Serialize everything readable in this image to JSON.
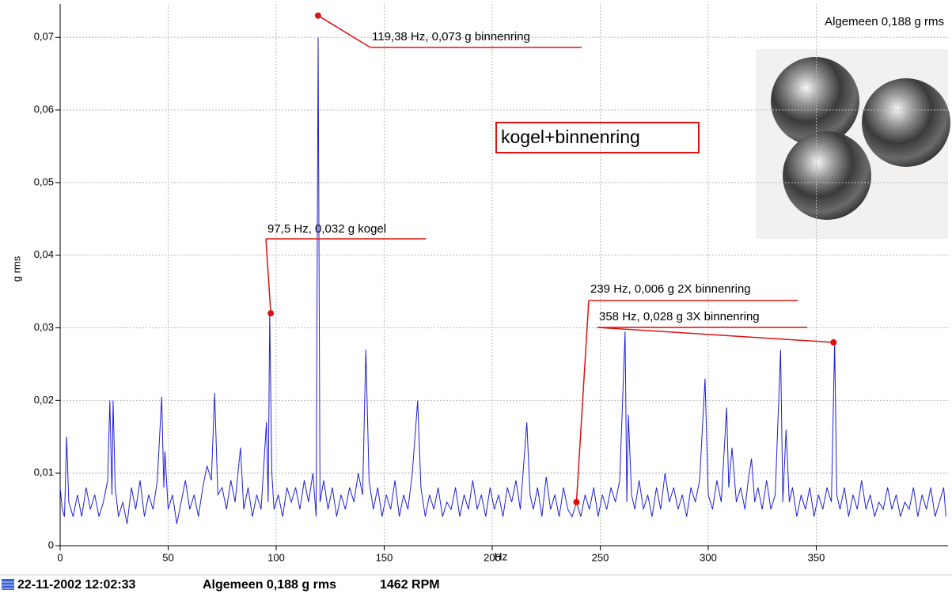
{
  "chart_data": {
    "type": "line",
    "title": "Algemeen 0,188 g rms",
    "x_label": "Hz",
    "y_label": "g rms",
    "box_label": "kogel+binnenring",
    "footer": {
      "timestamp": "22-11-2002 12:02:33",
      "overall": "Algemeen 0,188 g rms",
      "speed": "1462 RPM"
    },
    "xlim": [
      0,
      411
    ],
    "ylim": [
      0,
      0.0746
    ],
    "xticks": [
      0,
      50,
      100,
      150,
      200,
      250,
      300,
      350
    ],
    "yticks": [
      0,
      {
        "value": 0.01,
        "label": "0,01"
      },
      {
        "value": 0.02,
        "label": "0,02"
      },
      {
        "value": 0.03,
        "label": "0,03"
      },
      {
        "value": 0.04,
        "label": "0,04"
      },
      {
        "value": 0.05,
        "label": "0,05"
      },
      {
        "value": 0.06,
        "label": "0,06"
      },
      {
        "value": 0.07,
        "label": "0,07"
      }
    ],
    "grid": true,
    "x": [
      0,
      1,
      2,
      3,
      4,
      6,
      8,
      10,
      12,
      14,
      16,
      18,
      20,
      22,
      23,
      24,
      24.5,
      25.5,
      27,
      29,
      31,
      33,
      35,
      37,
      39,
      41,
      43,
      45,
      47,
      48,
      48.5,
      50,
      52,
      54,
      56,
      58,
      60,
      62,
      64,
      66,
      68,
      70,
      71.5,
      73,
      75,
      77,
      79,
      81,
      83.5,
      85,
      87,
      89,
      91,
      93,
      95.5,
      96.3,
      97,
      98,
      99,
      101,
      103,
      105,
      107,
      109,
      111,
      113,
      115,
      117,
      118.5,
      119.4,
      120.3,
      122,
      124,
      126,
      128,
      130,
      132,
      134,
      136,
      138,
      140,
      141.5,
      143,
      145,
      147,
      149,
      151,
      153,
      155,
      157,
      159,
      161,
      163,
      165.5,
      167,
      169,
      171,
      173,
      175,
      177,
      179,
      181,
      183,
      185,
      187,
      189,
      191,
      193,
      195,
      197,
      199,
      201,
      203,
      205,
      207,
      209,
      211,
      213,
      214.5,
      216,
      217.5,
      219,
      221,
      223,
      225,
      227,
      229,
      231,
      233,
      235,
      237,
      239,
      241,
      243,
      245,
      247,
      249,
      251,
      253,
      255,
      257,
      259,
      261.5,
      262.3,
      263,
      264.5,
      266,
      268,
      270,
      272,
      274,
      276,
      278,
      280,
      282,
      284,
      286,
      288,
      290,
      292,
      294,
      296,
      298.5,
      300,
      302,
      304,
      306,
      308.5,
      309.5,
      311,
      313,
      315,
      317,
      318.5,
      320,
      321.5,
      323,
      325,
      327,
      329,
      331,
      333.5,
      334.5,
      336,
      337.5,
      339,
      341,
      343,
      345,
      347,
      349,
      351,
      353,
      355,
      357,
      358.5,
      359.5,
      361,
      363,
      365,
      367,
      369,
      371,
      373,
      375,
      377,
      379,
      381,
      383,
      385,
      387,
      389,
      391,
      393,
      395,
      397,
      399,
      401,
      403,
      405,
      407,
      409,
      410
    ],
    "series": [
      {
        "color": "#1f1fd6",
        "values": [
          0.008,
          0.005,
          0.004,
          0.015,
          0.006,
          0.004,
          0.007,
          0.004,
          0.008,
          0.005,
          0.007,
          0.004,
          0.006,
          0.009,
          0.02,
          0.007,
          0.02,
          0.008,
          0.004,
          0.006,
          0.003,
          0.008,
          0.005,
          0.009,
          0.004,
          0.007,
          0.005,
          0.009,
          0.0205,
          0.008,
          0.013,
          0.005,
          0.007,
          0.003,
          0.006,
          0.009,
          0.005,
          0.007,
          0.004,
          0.008,
          0.011,
          0.009,
          0.021,
          0.007,
          0.008,
          0.005,
          0.009,
          0.006,
          0.0135,
          0.005,
          0.008,
          0.004,
          0.007,
          0.005,
          0.017,
          0.006,
          0.032,
          0.01,
          0.005,
          0.007,
          0.004,
          0.008,
          0.006,
          0.008,
          0.005,
          0.009,
          0.006,
          0.01,
          0.004,
          0.07,
          0.006,
          0.009,
          0.005,
          0.008,
          0.004,
          0.007,
          0.005,
          0.008,
          0.006,
          0.01,
          0.007,
          0.027,
          0.009,
          0.005,
          0.008,
          0.004,
          0.007,
          0.005,
          0.009,
          0.004,
          0.007,
          0.005,
          0.01,
          0.02,
          0.008,
          0.004,
          0.007,
          0.005,
          0.008,
          0.004,
          0.006,
          0.005,
          0.008,
          0.004,
          0.007,
          0.005,
          0.009,
          0.005,
          0.007,
          0.004,
          0.008,
          0.005,
          0.007,
          0.004,
          0.008,
          0.006,
          0.009,
          0.005,
          0.011,
          0.017,
          0.007,
          0.005,
          0.008,
          0.004,
          0.0095,
          0.005,
          0.007,
          0.004,
          0.008,
          0.005,
          0.004,
          0.006,
          0.004,
          0.007,
          0.005,
          0.008,
          0.004,
          0.007,
          0.005,
          0.008,
          0.006,
          0.009,
          0.0295,
          0.006,
          0.018,
          0.007,
          0.005,
          0.009,
          0.005,
          0.007,
          0.004,
          0.008,
          0.005,
          0.01,
          0.006,
          0.008,
          0.005,
          0.007,
          0.004,
          0.008,
          0.006,
          0.009,
          0.023,
          0.007,
          0.005,
          0.009,
          0.006,
          0.019,
          0.008,
          0.0135,
          0.006,
          0.008,
          0.005,
          0.009,
          0.012,
          0.006,
          0.008,
          0.005,
          0.009,
          0.005,
          0.007,
          0.027,
          0.006,
          0.016,
          0.006,
          0.008,
          0.004,
          0.007,
          0.005,
          0.008,
          0.004,
          0.007,
          0.005,
          0.008,
          0.006,
          0.028,
          0.007,
          0.005,
          0.008,
          0.004,
          0.007,
          0.005,
          0.009,
          0.005,
          0.007,
          0.004,
          0.006,
          0.005,
          0.008,
          0.005,
          0.007,
          0.004,
          0.006,
          0.005,
          0.008,
          0.004,
          0.007,
          0.005,
          0.008,
          0.004,
          0.006,
          0.008,
          0.004
        ]
      }
    ],
    "annotations": [
      {
        "text": "119,38 Hz, 0,073 g binnenring",
        "x": 119.38,
        "y": 0.073,
        "color": "#e01010"
      },
      {
        "text": "97,5 Hz, 0,032 g kogel",
        "x": 97.5,
        "y": 0.032,
        "color": "#e01010"
      },
      {
        "text": "239 Hz, 0,006 g 2X binnenring",
        "x": 239,
        "y": 0.006,
        "color": "#e01010"
      },
      {
        "text": "358 Hz, 0,028 g 3X binnenring",
        "x": 358,
        "y": 0.028,
        "color": "#e01010"
      }
    ]
  }
}
